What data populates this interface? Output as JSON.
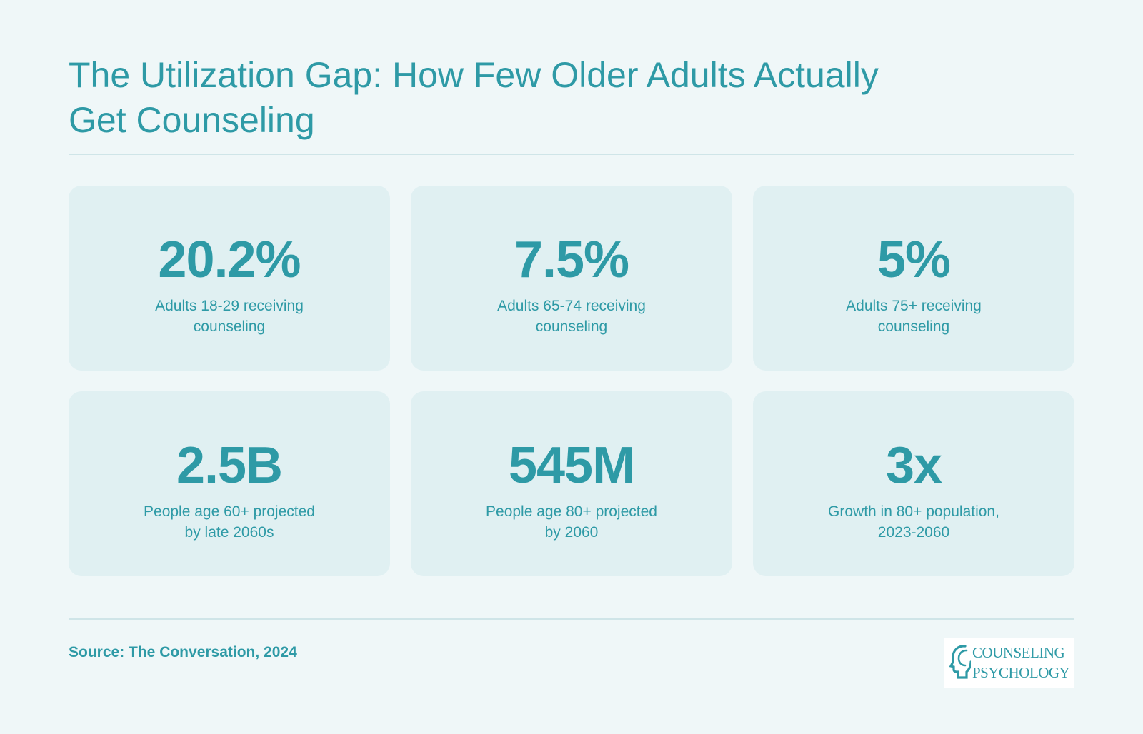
{
  "header": {
    "title": "The Utilization Gap: How Few Older Adults Actually Get Counseling"
  },
  "stats": [
    {
      "value": "20.2%",
      "label": "Adults 18-29 receiving\ncounseling"
    },
    {
      "value": "7.5%",
      "label": "Adults 65-74 receiving\ncounseling"
    },
    {
      "value": "5%",
      "label": "Adults 75+ receiving\ncounseling"
    },
    {
      "value": "2.5B",
      "label": "People age 60+ projected\nby late 2060s"
    },
    {
      "value": "545M",
      "label": "People age 80+ projected\nby 2060"
    },
    {
      "value": "3x",
      "label": "Growth in 80+ population,\n2023-2060"
    }
  ],
  "footer": {
    "source": "Source: The Conversation, 2024",
    "logo_line1": "COUNSELING",
    "logo_line2": "PSYCHOLOGY",
    "logo_icon": "head-profile-icon"
  },
  "colors": {
    "background": "#eff7f8",
    "card": "#e0f0f2",
    "accent": "#2e9aa6",
    "rule": "#cfe5e8"
  }
}
